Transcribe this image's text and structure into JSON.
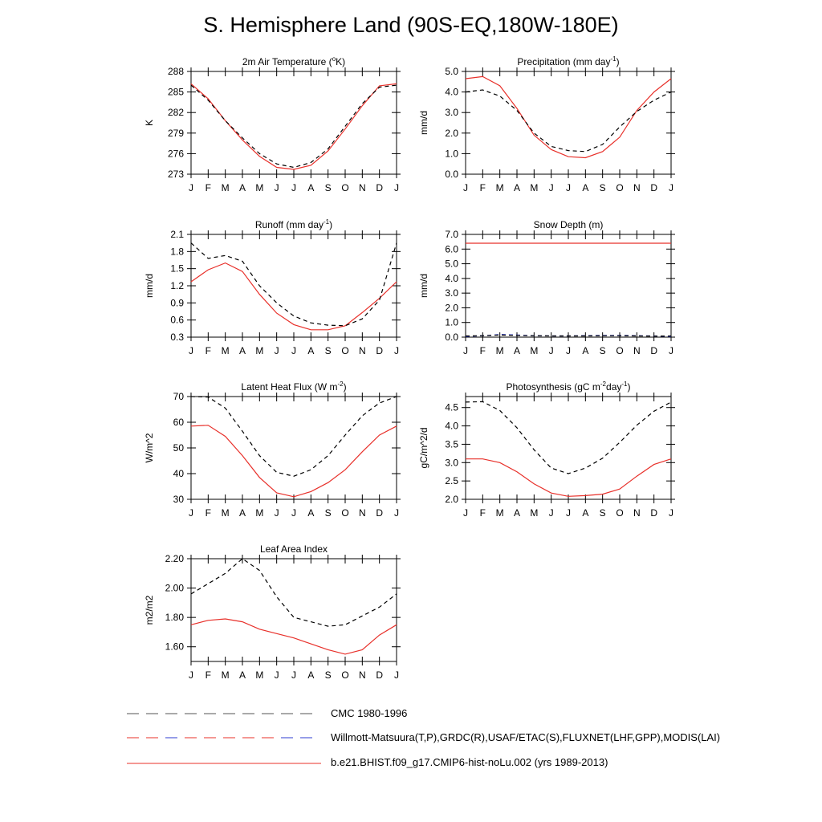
{
  "title": "S. Hemisphere Land (90S-EQ,180W-180E)",
  "months": [
    "J",
    "F",
    "M",
    "A",
    "M",
    "J",
    "J",
    "A",
    "S",
    "O",
    "N",
    "D",
    "J"
  ],
  "colors": {
    "model": "#e8302a",
    "obs": "#000000",
    "obs_blue": "#2e3cd0"
  },
  "legend": {
    "cmc": "CMC 1980-1996",
    "obs": "Willmott-Matsuura(T,P),GRDC(R),USAF/ETAC(S),FLUXNET(LHF,GPP),MODIS(LAI)",
    "model": "b.e21.BHIST.f09_g17.CMIP6-hist-noLu.002 (yrs 1989-2013)"
  },
  "chart_data": [
    {
      "type": "line",
      "title": "2m Air Temperature (°K)",
      "title_main": "2m Air Temperature (",
      "title_sup": "o",
      "title_rest": "K)",
      "ylabel": "K",
      "ylim": [
        273,
        288
      ],
      "yticks": [
        273,
        276,
        279,
        282,
        285,
        288
      ],
      "ytick_labels": [
        "273",
        "276",
        "279",
        "282",
        "285",
        "288"
      ],
      "series": [
        {
          "style": "model",
          "values": [
            286.2,
            284.0,
            280.8,
            278.0,
            275.6,
            274.0,
            273.7,
            274.3,
            276.4,
            279.6,
            283.0,
            285.9,
            286.2
          ]
        },
        {
          "style": "obs",
          "values": [
            286.0,
            283.8,
            280.8,
            278.3,
            276.0,
            274.5,
            274.0,
            274.7,
            276.7,
            280.0,
            283.3,
            285.7,
            286.0
          ]
        }
      ]
    },
    {
      "type": "line",
      "title": "Precipitation (mm day-1)",
      "title_main": "Precipitation (mm day",
      "title_sup": "-1",
      "title_rest": ")",
      "ylabel": "mm/d",
      "ylim": [
        0,
        5
      ],
      "yticks": [
        0,
        1,
        2,
        3,
        4,
        5
      ],
      "ytick_labels": [
        "0.0",
        "1.0",
        "2.0",
        "3.0",
        "4.0",
        "5.0"
      ],
      "series": [
        {
          "style": "model",
          "values": [
            4.65,
            4.75,
            4.3,
            3.2,
            1.9,
            1.2,
            0.85,
            0.8,
            1.1,
            1.8,
            3.1,
            4.0,
            4.65
          ]
        },
        {
          "style": "obs",
          "values": [
            4.0,
            4.1,
            3.8,
            3.1,
            2.0,
            1.35,
            1.15,
            1.1,
            1.45,
            2.3,
            3.05,
            3.6,
            4.0
          ]
        }
      ]
    },
    {
      "type": "line",
      "title": "Runoff (mm day-1)",
      "title_main": "Runoff (mm day",
      "title_sup": "-1",
      "title_rest": ")",
      "ylabel": "mm/d",
      "ylim": [
        0.3,
        2.1
      ],
      "yticks": [
        0.3,
        0.6,
        0.9,
        1.2,
        1.5,
        1.8,
        2.1
      ],
      "ytick_labels": [
        "0.3",
        "0.6",
        "0.9",
        "1.2",
        "1.5",
        "1.8",
        "2.1"
      ],
      "series": [
        {
          "style": "model",
          "values": [
            1.27,
            1.48,
            1.6,
            1.45,
            1.05,
            0.72,
            0.52,
            0.43,
            0.43,
            0.5,
            0.73,
            0.98,
            1.27
          ]
        },
        {
          "style": "obs",
          "values": [
            1.95,
            1.68,
            1.73,
            1.63,
            1.2,
            0.9,
            0.67,
            0.55,
            0.51,
            0.5,
            0.62,
            0.95,
            1.95
          ]
        }
      ]
    },
    {
      "type": "line",
      "title": "Snow Depth (m)",
      "title_main": "Snow Depth (m)",
      "title_sup": "",
      "title_rest": "",
      "ylabel": "mm/d",
      "ylim": [
        0,
        7
      ],
      "yticks": [
        0,
        1,
        2,
        3,
        4,
        5,
        6,
        7
      ],
      "ytick_labels": [
        "0.0",
        "1.0",
        "2.0",
        "3.0",
        "4.0",
        "5.0",
        "6.0",
        "7.0"
      ],
      "series": [
        {
          "style": "model",
          "values": [
            6.4,
            6.4,
            6.4,
            6.4,
            6.4,
            6.4,
            6.4,
            6.4,
            6.4,
            6.4,
            6.4,
            6.4,
            6.4
          ]
        },
        {
          "style": "obs_blue",
          "values": [
            0.05,
            0.1,
            0.18,
            0.15,
            0.1,
            0.08,
            0.08,
            0.1,
            0.12,
            0.12,
            0.1,
            0.08,
            0.05
          ]
        },
        {
          "style": "obs",
          "values": [
            0.08,
            0.1,
            0.15,
            0.12,
            0.1,
            0.08,
            0.08,
            0.08,
            0.1,
            0.1,
            0.08,
            0.07,
            0.08
          ]
        }
      ]
    },
    {
      "type": "line",
      "title": "Latent Heat Flux (W m-2)",
      "title_main": "Latent Heat Flux (W m",
      "title_sup": "-2",
      "title_rest": ")",
      "ylabel": "W/m^2",
      "ylim": [
        30,
        70
      ],
      "yticks": [
        30,
        40,
        50,
        60,
        70
      ],
      "ytick_labels": [
        "30",
        "40",
        "50",
        "60",
        "70"
      ],
      "series": [
        {
          "style": "model",
          "values": [
            58.5,
            58.8,
            54.5,
            47.0,
            38.5,
            32.5,
            31.0,
            33.0,
            36.5,
            41.5,
            48.5,
            55.0,
            58.5
          ]
        },
        {
          "style": "obs",
          "values": [
            70.0,
            69.8,
            65.5,
            56.5,
            47.0,
            40.5,
            39.0,
            41.5,
            47.0,
            55.0,
            62.5,
            67.5,
            70.0
          ]
        }
      ]
    },
    {
      "type": "line",
      "title": "Photosynthesis (gC m-2day-1)",
      "title_main": "Photosynthesis (gC m",
      "title_sup": "-2",
      "title_rest": "day",
      "title_sup2": "-1",
      "title_end": ")",
      "ylabel": "gC/m^2/d",
      "ylim": [
        2.0,
        4.8
      ],
      "yticks": [
        2.0,
        2.5,
        3.0,
        3.5,
        4.0,
        4.5
      ],
      "ytick_labels": [
        "2.0",
        "2.5",
        "3.0",
        "3.5",
        "4.0",
        "4.5"
      ],
      "series": [
        {
          "style": "model",
          "values": [
            3.1,
            3.1,
            3.0,
            2.75,
            2.42,
            2.17,
            2.08,
            2.1,
            2.14,
            2.28,
            2.63,
            2.95,
            3.1
          ]
        },
        {
          "style": "obs",
          "values": [
            4.65,
            4.66,
            4.42,
            3.95,
            3.35,
            2.85,
            2.7,
            2.85,
            3.12,
            3.55,
            4.02,
            4.4,
            4.65
          ]
        }
      ]
    },
    {
      "type": "line",
      "title": "Leaf Area Index",
      "title_main": "Leaf Area Index",
      "title_sup": "",
      "title_rest": "",
      "ylabel": "m2/m2",
      "ylim": [
        1.5,
        2.2
      ],
      "yticks": [
        1.6,
        1.8,
        2.0,
        2.2
      ],
      "ytick_labels": [
        "1.60",
        "1.80",
        "2.00",
        "2.20"
      ],
      "series": [
        {
          "style": "model",
          "values": [
            1.75,
            1.78,
            1.79,
            1.77,
            1.72,
            1.69,
            1.66,
            1.62,
            1.58,
            1.55,
            1.58,
            1.68,
            1.75
          ]
        },
        {
          "style": "obs",
          "values": [
            1.96,
            2.03,
            2.1,
            2.2,
            2.12,
            1.94,
            1.8,
            1.77,
            1.74,
            1.75,
            1.81,
            1.87,
            1.96
          ]
        }
      ]
    }
  ]
}
